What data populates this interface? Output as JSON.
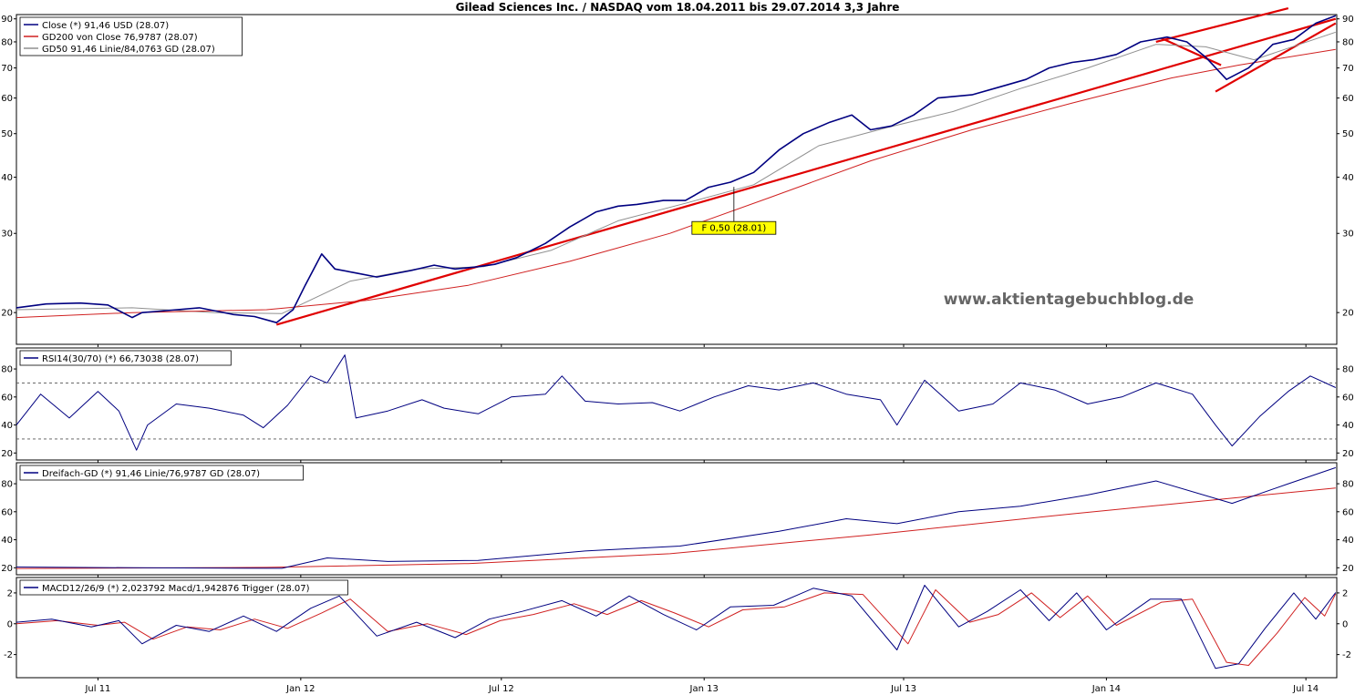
{
  "chart_data": [
    {
      "type": "line",
      "panel": "price",
      "title": "Gilead Sciences Inc. / NASDAQ vom 18.04.2011 bis 29.07.2014 3,3 Jahre",
      "scale": "log",
      "ylim": [
        17,
        92
      ],
      "yticks": [
        20,
        30,
        40,
        50,
        60,
        70,
        80,
        90
      ],
      "x_range": [
        "2011-04-18",
        "2014-07-29"
      ],
      "xticks": [
        {
          "date": "2011-07-01",
          "label": "Jul 11"
        },
        {
          "date": "2012-01-01",
          "label": "Jan 12"
        },
        {
          "date": "2012-07-01",
          "label": "Jul 12"
        },
        {
          "date": "2013-01-01",
          "label": "Jan 13"
        },
        {
          "date": "2013-07-01",
          "label": "Jul 13"
        },
        {
          "date": "2014-01-01",
          "label": "Jan 14"
        },
        {
          "date": "2014-07-01",
          "label": "Jul 14"
        }
      ],
      "legend": [
        "Close (*) 91,46 USD (28.07)",
        "GD200 von Close 76,9787 (28.07)",
        "GD50 91,46 Linie/84,0763 GD (28.07)"
      ],
      "series": [
        {
          "name": "Close",
          "color": "#000080",
          "x": [
            "2011-04-18",
            "2011-05-15",
            "2011-06-15",
            "2011-07-10",
            "2011-08-01",
            "2011-08-10",
            "2011-09-01",
            "2011-10-01",
            "2011-11-01",
            "2011-11-20",
            "2011-12-10",
            "2011-12-25",
            "2012-01-05",
            "2012-01-20",
            "2012-02-01",
            "2012-02-20",
            "2012-03-10",
            "2012-04-10",
            "2012-05-01",
            "2012-05-20",
            "2012-06-10",
            "2012-06-25",
            "2012-07-15",
            "2012-08-10",
            "2012-09-01",
            "2012-09-25",
            "2012-10-15",
            "2012-11-01",
            "2012-11-25",
            "2012-12-15",
            "2013-01-05",
            "2013-01-25",
            "2013-02-15",
            "2013-03-10",
            "2013-04-01",
            "2013-04-25",
            "2013-05-15",
            "2013-06-01",
            "2013-06-20",
            "2013-07-10",
            "2013-08-01",
            "2013-09-01",
            "2013-10-01",
            "2013-10-20",
            "2013-11-10",
            "2013-12-01",
            "2013-12-20",
            "2014-01-10",
            "2014-02-01",
            "2014-02-25",
            "2014-03-15",
            "2014-04-01",
            "2014-04-20",
            "2014-05-10",
            "2014-06-01",
            "2014-06-20",
            "2014-07-10",
            "2014-07-28"
          ],
          "values": [
            20.5,
            20.9,
            21.0,
            20.8,
            19.5,
            20.0,
            20.2,
            20.5,
            19.8,
            19.6,
            19.0,
            20.3,
            23.0,
            27.0,
            25.0,
            24.5,
            24.0,
            24.8,
            25.5,
            25.0,
            25.3,
            25.6,
            26.5,
            28.5,
            31.0,
            33.5,
            34.5,
            34.8,
            35.5,
            35.5,
            38.0,
            39.0,
            41.0,
            46.0,
            50.0,
            53.0,
            55.0,
            51.0,
            52.0,
            55.0,
            60.0,
            61.0,
            64.0,
            66.0,
            70.0,
            72.0,
            73.0,
            75.0,
            80.0,
            82.0,
            80.0,
            74.0,
            66.0,
            70.0,
            79.0,
            81.0,
            88.0,
            91.46
          ]
        },
        {
          "name": "GD200 von Close",
          "color": "#d02020",
          "x": [
            "2011-04-18",
            "2011-08-01",
            "2011-12-01",
            "2012-03-01",
            "2012-06-01",
            "2012-09-01",
            "2012-12-01",
            "2013-03-01",
            "2013-06-01",
            "2013-09-01",
            "2013-12-01",
            "2014-03-01",
            "2014-05-01",
            "2014-07-28"
          ],
          "values": [
            19.5,
            20.0,
            20.3,
            21.3,
            23.0,
            26.0,
            30.0,
            36.0,
            43.5,
            51.0,
            58.5,
            66.5,
            71.0,
            76.98
          ]
        },
        {
          "name": "GD50",
          "color": "#909090",
          "x": [
            "2011-04-18",
            "2011-08-01",
            "2011-10-15",
            "2011-12-15",
            "2012-02-15",
            "2012-04-15",
            "2012-06-15",
            "2012-08-15",
            "2012-10-15",
            "2012-12-15",
            "2013-02-15",
            "2013-04-15",
            "2013-06-15",
            "2013-08-15",
            "2013-10-15",
            "2013-12-15",
            "2014-02-15",
            "2014-04-01",
            "2014-05-15",
            "2014-07-28"
          ],
          "values": [
            20.3,
            20.5,
            20.0,
            19.9,
            23.5,
            25.0,
            25.3,
            27.5,
            32.0,
            35.0,
            38.5,
            47.0,
            51.5,
            56.0,
            63.0,
            70.0,
            79.0,
            78.0,
            73.0,
            84.08
          ]
        }
      ],
      "trendlines": [
        {
          "from": [
            "2011-12-10",
            18.8
          ],
          "to": [
            "2014-07-28",
            90.0
          ]
        },
        {
          "from": [
            "2014-02-20",
            81.5
          ],
          "to": [
            "2014-04-15",
            71.0
          ]
        },
        {
          "from": [
            "2014-04-10",
            62.0
          ],
          "to": [
            "2014-07-28",
            88.0
          ]
        },
        {
          "from": [
            "2014-02-15",
            80.0
          ],
          "to": [
            "2014-06-15",
            95.0
          ]
        }
      ],
      "annotations": [
        {
          "text": "F 0,50 (28.01)",
          "date": "2013-01-28",
          "value": 31.0
        }
      ],
      "watermark": "www.aktientagebuchblog.de"
    },
    {
      "type": "line",
      "panel": "rsi",
      "ylim": [
        15,
        95
      ],
      "yticks": [
        20,
        40,
        60,
        80
      ],
      "reference_lines": [
        30,
        70
      ],
      "legend": [
        "RSI14(30/70) (*) 66,73038 (28.07)"
      ],
      "series": [
        {
          "name": "RSI14",
          "color": "#000080",
          "x": [
            "2011-04-18",
            "2011-05-10",
            "2011-06-05",
            "2011-07-01",
            "2011-07-20",
            "2011-08-05",
            "2011-08-15",
            "2011-09-10",
            "2011-10-10",
            "2011-11-10",
            "2011-11-28",
            "2011-12-20",
            "2012-01-10",
            "2012-01-25",
            "2012-02-10",
            "2012-02-20",
            "2012-03-20",
            "2012-04-20",
            "2012-05-10",
            "2012-06-10",
            "2012-07-10",
            "2012-08-10",
            "2012-08-25",
            "2012-09-15",
            "2012-10-15",
            "2012-11-15",
            "2012-12-10",
            "2013-01-10",
            "2013-02-10",
            "2013-03-10",
            "2013-04-10",
            "2013-05-10",
            "2013-06-10",
            "2013-06-25",
            "2013-07-20",
            "2013-08-20",
            "2013-09-20",
            "2013-10-15",
            "2013-11-15",
            "2013-12-15",
            "2014-01-15",
            "2014-02-15",
            "2014-03-20",
            "2014-04-10",
            "2014-04-25",
            "2014-05-20",
            "2014-06-15",
            "2014-07-05",
            "2014-07-28"
          ],
          "values": [
            40,
            62,
            45,
            64,
            50,
            22,
            40,
            55,
            52,
            47,
            38,
            54,
            75,
            70,
            90,
            45,
            50,
            58,
            52,
            48,
            60,
            62,
            75,
            57,
            55,
            56,
            50,
            60,
            68,
            65,
            70,
            62,
            58,
            40,
            72,
            50,
            55,
            70,
            65,
            55,
            60,
            70,
            62,
            40,
            25,
            46,
            64,
            75,
            66.7
          ]
        }
      ]
    },
    {
      "type": "line",
      "panel": "triple-ma",
      "ylim": [
        15,
        95
      ],
      "yticks": [
        20,
        40,
        60,
        80
      ],
      "legend": [
        "Dreifach-GD (*) 91,46 Linie/76,9787 GD (28.07)"
      ],
      "series": [
        {
          "name": "Dreifach-GD",
          "color": "#000080",
          "x": [
            "2011-04-18",
            "2011-08-01",
            "2011-12-15",
            "2012-01-25",
            "2012-03-20",
            "2012-06-10",
            "2012-09-15",
            "2012-12-10",
            "2013-03-10",
            "2013-05-10",
            "2013-06-25",
            "2013-08-20",
            "2013-10-15",
            "2013-12-15",
            "2014-02-15",
            "2014-04-25",
            "2014-06-15",
            "2014-07-28"
          ],
          "values": [
            20.5,
            20.0,
            19.6,
            27.0,
            24.5,
            25.3,
            32.0,
            35.5,
            46.0,
            55.0,
            51.5,
            60.0,
            64.0,
            72.0,
            82.0,
            66.0,
            80.0,
            91.46
          ]
        },
        {
          "name": "GD",
          "color": "#d02020",
          "x": [
            "2011-04-18",
            "2011-12-01",
            "2012-06-01",
            "2012-12-01",
            "2013-06-01",
            "2013-12-01",
            "2014-07-28"
          ],
          "values": [
            19.5,
            20.3,
            23.0,
            30.0,
            43.5,
            58.5,
            76.98
          ]
        }
      ]
    },
    {
      "type": "line",
      "panel": "macd",
      "ylim": [
        -3.5,
        3.0
      ],
      "yticks": [
        -2,
        0,
        2
      ],
      "legend": [
        "MACD12/26/9 (*) 2,023792 Macd/1,942876 Trigger (28.07)"
      ],
      "series": [
        {
          "name": "Macd",
          "color": "#000080",
          "x": [
            "2011-04-18",
            "2011-05-20",
            "2011-06-25",
            "2011-07-20",
            "2011-08-10",
            "2011-09-10",
            "2011-10-10",
            "2011-11-10",
            "2011-12-10",
            "2012-01-10",
            "2012-02-05",
            "2012-03-10",
            "2012-04-15",
            "2012-05-20",
            "2012-06-20",
            "2012-07-20",
            "2012-08-25",
            "2012-09-25",
            "2012-10-25",
            "2012-11-25",
            "2012-12-25",
            "2013-01-25",
            "2013-03-05",
            "2013-04-10",
            "2013-05-15",
            "2013-06-25",
            "2013-07-20",
            "2013-08-20",
            "2013-09-15",
            "2013-10-15",
            "2013-11-10",
            "2013-12-05",
            "2014-01-01",
            "2014-02-10",
            "2014-03-10",
            "2014-04-10",
            "2014-05-01",
            "2014-05-25",
            "2014-06-20",
            "2014-07-10",
            "2014-07-28"
          ],
          "values": [
            0.1,
            0.3,
            -0.2,
            0.2,
            -1.3,
            -0.1,
            -0.5,
            0.5,
            -0.5,
            1.0,
            1.8,
            -0.8,
            0.1,
            -0.9,
            0.3,
            0.8,
            1.5,
            0.5,
            1.8,
            0.6,
            -0.4,
            1.1,
            1.2,
            2.3,
            1.8,
            -1.7,
            2.5,
            -0.2,
            0.8,
            2.2,
            0.2,
            2.0,
            -0.4,
            1.6,
            1.6,
            -2.9,
            -2.6,
            -0.3,
            2.0,
            0.3,
            2.02
          ]
        },
        {
          "name": "Trigger",
          "color": "#d02020",
          "x": [
            "2011-04-18",
            "2011-05-25",
            "2011-07-01",
            "2011-07-25",
            "2011-08-20",
            "2011-09-20",
            "2011-10-20",
            "2011-11-20",
            "2011-12-20",
            "2012-01-20",
            "2012-02-15",
            "2012-03-20",
            "2012-04-25",
            "2012-05-30",
            "2012-06-30",
            "2012-07-30",
            "2012-09-05",
            "2012-10-05",
            "2012-11-05",
            "2012-12-05",
            "2013-01-05",
            "2013-02-05",
            "2013-03-15",
            "2013-04-20",
            "2013-05-25",
            "2013-07-05",
            "2013-07-30",
            "2013-08-30",
            "2013-09-25",
            "2013-10-25",
            "2013-11-20",
            "2013-12-15",
            "2014-01-10",
            "2014-02-20",
            "2014-03-20",
            "2014-04-20",
            "2014-05-10",
            "2014-06-05",
            "2014-06-30",
            "2014-07-18",
            "2014-07-28"
          ],
          "values": [
            0.0,
            0.2,
            -0.1,
            0.1,
            -1.0,
            -0.2,
            -0.4,
            0.3,
            -0.3,
            0.7,
            1.6,
            -0.5,
            0.0,
            -0.7,
            0.2,
            0.6,
            1.3,
            0.6,
            1.5,
            0.7,
            -0.2,
            0.9,
            1.1,
            2.0,
            1.9,
            -1.3,
            2.2,
            0.1,
            0.6,
            2.0,
            0.4,
            1.8,
            -0.1,
            1.4,
            1.6,
            -2.5,
            -2.7,
            -0.6,
            1.7,
            0.5,
            1.94
          ]
        }
      ]
    }
  ]
}
